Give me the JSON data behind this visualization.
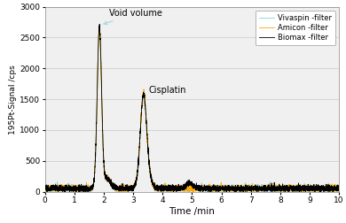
{
  "title": "",
  "xlabel": "Time /min",
  "ylabel": "195Pt-Signal /cps",
  "xlim": [
    0,
    10
  ],
  "ylim": [
    0,
    3000
  ],
  "yticks": [
    0,
    500,
    1000,
    1500,
    2000,
    2500,
    3000
  ],
  "xticks": [
    0,
    1,
    2,
    3,
    4,
    5,
    6,
    7,
    8,
    9,
    10
  ],
  "void_volume_x": 1.85,
  "void_volume_peak": 2620,
  "cisplatin_x": 3.35,
  "cisplatin_peak": 1520,
  "noise_mean": 55,
  "noise_std": 25,
  "colors": {
    "biomax": "#000000",
    "amicon": "#FFA500",
    "vivaspin": "#87CEEB"
  },
  "legend_labels": [
    "Biomax -filter",
    "Amicon -filter",
    "Vivaspin -filter"
  ],
  "annotation_void": "Void volume",
  "annotation_cisplatin": "Cisplatin",
  "background_color": "#ffffff",
  "grid_color": "#c8c8c8",
  "plot_bg": "#f0f0f0"
}
